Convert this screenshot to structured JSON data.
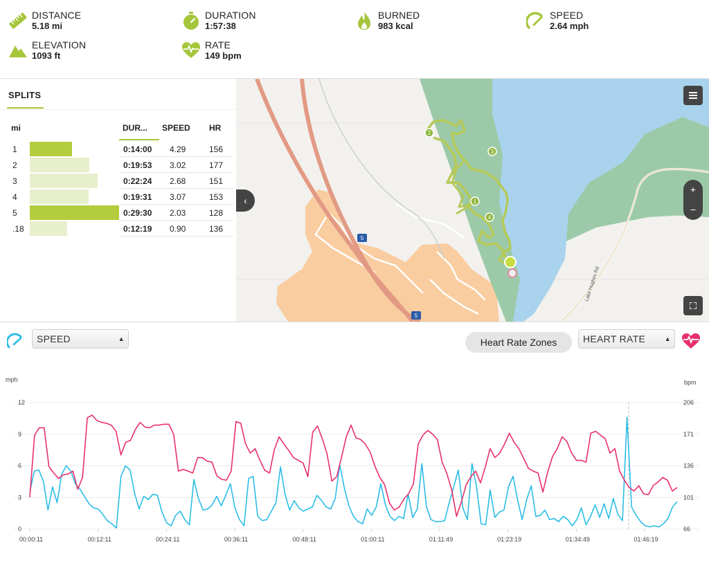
{
  "stats": {
    "distance": {
      "label": "DISTANCE",
      "value": "5.18 mi"
    },
    "duration": {
      "label": "DURATION",
      "value": "1:57:38"
    },
    "burned": {
      "label": "BURNED",
      "value": "983 kcal"
    },
    "speed": {
      "label": "SPEED",
      "value": "2.64 mph"
    },
    "elevation": {
      "label": "ELEVATION",
      "value": "1093 ft"
    },
    "rate": {
      "label": "RATE",
      "value": "149 bpm"
    }
  },
  "splits": {
    "tab_label": "SPLITS",
    "columns": {
      "mi": "mi",
      "duration": "DUR...",
      "speed": "SPEED",
      "hr": "HR"
    },
    "rows": [
      {
        "mi": "1",
        "duration": "0:14:00",
        "speed": "4.29",
        "hr": "156",
        "fraction": 0.47,
        "highlight": true
      },
      {
        "mi": "2",
        "duration": "0:19:53",
        "speed": "3.02",
        "hr": "177",
        "fraction": 0.67,
        "highlight": false
      },
      {
        "mi": "3",
        "duration": "0:22:24",
        "speed": "2.68",
        "hr": "151",
        "fraction": 0.76,
        "highlight": false
      },
      {
        "mi": "4",
        "duration": "0:19:31",
        "speed": "3.07",
        "hr": "153",
        "fraction": 0.66,
        "highlight": false
      },
      {
        "mi": "5",
        "duration": "0:29:30",
        "speed": "2.03",
        "hr": "128",
        "fraction": 1.0,
        "highlight": true
      },
      {
        "mi": ".18",
        "duration": "0:12:19",
        "speed": "0.90",
        "hr": "136",
        "fraction": 0.42,
        "highlight": false
      }
    ]
  },
  "map": {
    "road_label": "Lake Hughes Rd",
    "highway_shield": "5",
    "markers": [
      "1",
      "2",
      "3",
      "4"
    ],
    "menu_icon": "menu-icon",
    "zoom_in": "+",
    "zoom_out": "−",
    "collapse": "‹"
  },
  "controls": {
    "left_metric": "SPEED",
    "zones_button": "Heart Rate Zones",
    "right_metric": "HEART RATE"
  },
  "chart_data": {
    "type": "line",
    "x_ticks": [
      "00:00:11",
      "00:12:11",
      "00:24:11",
      "00:36:11",
      "00:48:11",
      "01:00:11",
      "01:11:49",
      "01:23:19",
      "01:34:49",
      "01:46:19"
    ],
    "left_unit": "mph",
    "right_unit": "bpm",
    "left_ticks": [
      "12",
      "9",
      "6",
      "3",
      "0"
    ],
    "right_ticks": [
      "206",
      "171",
      "136",
      "101",
      "66"
    ],
    "ylim_left": [
      0,
      12
    ],
    "ylim_right": [
      66,
      206
    ],
    "colors": {
      "speed": "#2bbde6",
      "heart_rate": "#e8306c"
    },
    "series": [
      {
        "metric": "speed",
        "values": [
          3.5,
          5.5,
          5.6,
          4.5,
          1.8,
          4.0,
          2.5,
          5.2,
          6.0,
          5.5,
          4.3,
          3.8,
          3.1,
          2.4,
          2.0,
          1.9,
          1.4,
          0.8,
          0.5,
          0.1,
          5.0,
          6.0,
          5.6,
          3.4,
          1.9,
          3.1,
          2.8,
          3.3,
          3.2,
          1.6,
          0.6,
          0.3,
          1.3,
          1.7,
          0.9,
          0.4,
          4.7,
          2.9,
          1.8,
          1.9,
          2.3,
          3.1,
          2.2,
          3.2,
          4.3,
          2.0,
          0.9,
          0.3,
          4.8,
          5.0,
          1.2,
          0.8,
          0.9,
          1.7,
          2.5,
          5.9,
          3.3,
          1.8,
          2.7,
          2.0,
          1.7,
          1.9,
          2.1,
          3.2,
          2.7,
          2.1,
          1.9,
          2.9,
          6.1,
          3.9,
          2.2,
          1.2,
          0.7,
          0.5,
          1.9,
          1.3,
          2.1,
          4.3,
          2.3,
          1.2,
          0.8,
          1.2,
          1.0,
          3.3,
          1.1,
          1.9,
          6.2,
          2.1,
          0.9,
          0.7,
          0.7,
          0.8,
          2.5,
          4.0,
          5.6,
          2.0,
          0.9,
          6.2,
          4.0,
          0.5,
          0.4,
          3.7,
          1.1,
          1.6,
          1.8,
          4.0,
          5.0,
          2.8,
          0.9,
          2.8,
          4.1,
          1.2,
          1.3,
          1.8,
          0.9,
          1.0,
          0.7,
          1.2,
          0.9,
          0.3,
          0.9,
          2.0,
          0.4,
          1.2,
          2.3,
          1.1,
          2.4,
          1.0,
          2.9,
          1.4,
          0.8,
          10.6,
          2.1,
          1.3,
          0.7,
          0.3,
          0.2,
          0.3,
          0.2,
          0.5,
          1.0,
          2.1,
          2.6
        ]
      },
      {
        "metric": "heart_rate",
        "values": [
          101,
          170,
          178,
          178,
          135,
          128,
          122,
          126,
          127,
          130,
          110,
          123,
          189,
          192,
          186,
          184,
          183,
          181,
          174,
          148,
          162,
          164,
          176,
          184,
          179,
          178,
          181,
          181,
          182,
          182,
          171,
          130,
          132,
          130,
          128,
          145,
          145,
          141,
          140,
          125,
          121,
          120,
          130,
          185,
          183,
          160,
          150,
          155,
          142,
          131,
          128,
          154,
          168,
          160,
          153,
          145,
          142,
          139,
          124,
          173,
          180,
          166,
          149,
          119,
          124,
          145,
          168,
          181,
          167,
          165,
          160,
          151,
          135,
          123,
          115,
          95,
          87,
          90,
          99,
          105,
          116,
          160,
          170,
          175,
          171,
          165,
          140,
          127,
          109,
          80,
          96,
          115,
          124,
          130,
          117,
          135,
          155,
          145,
          150,
          160,
          172,
          162,
          155,
          144,
          133,
          130,
          128,
          107,
          129,
          146,
          155,
          168,
          163,
          150,
          142,
          142,
          140,
          172,
          174,
          170,
          166,
          150,
          155,
          130,
          120,
          112,
          108,
          114,
          105,
          104,
          114,
          118,
          123,
          120,
          108,
          112
        ]
      }
    ]
  }
}
